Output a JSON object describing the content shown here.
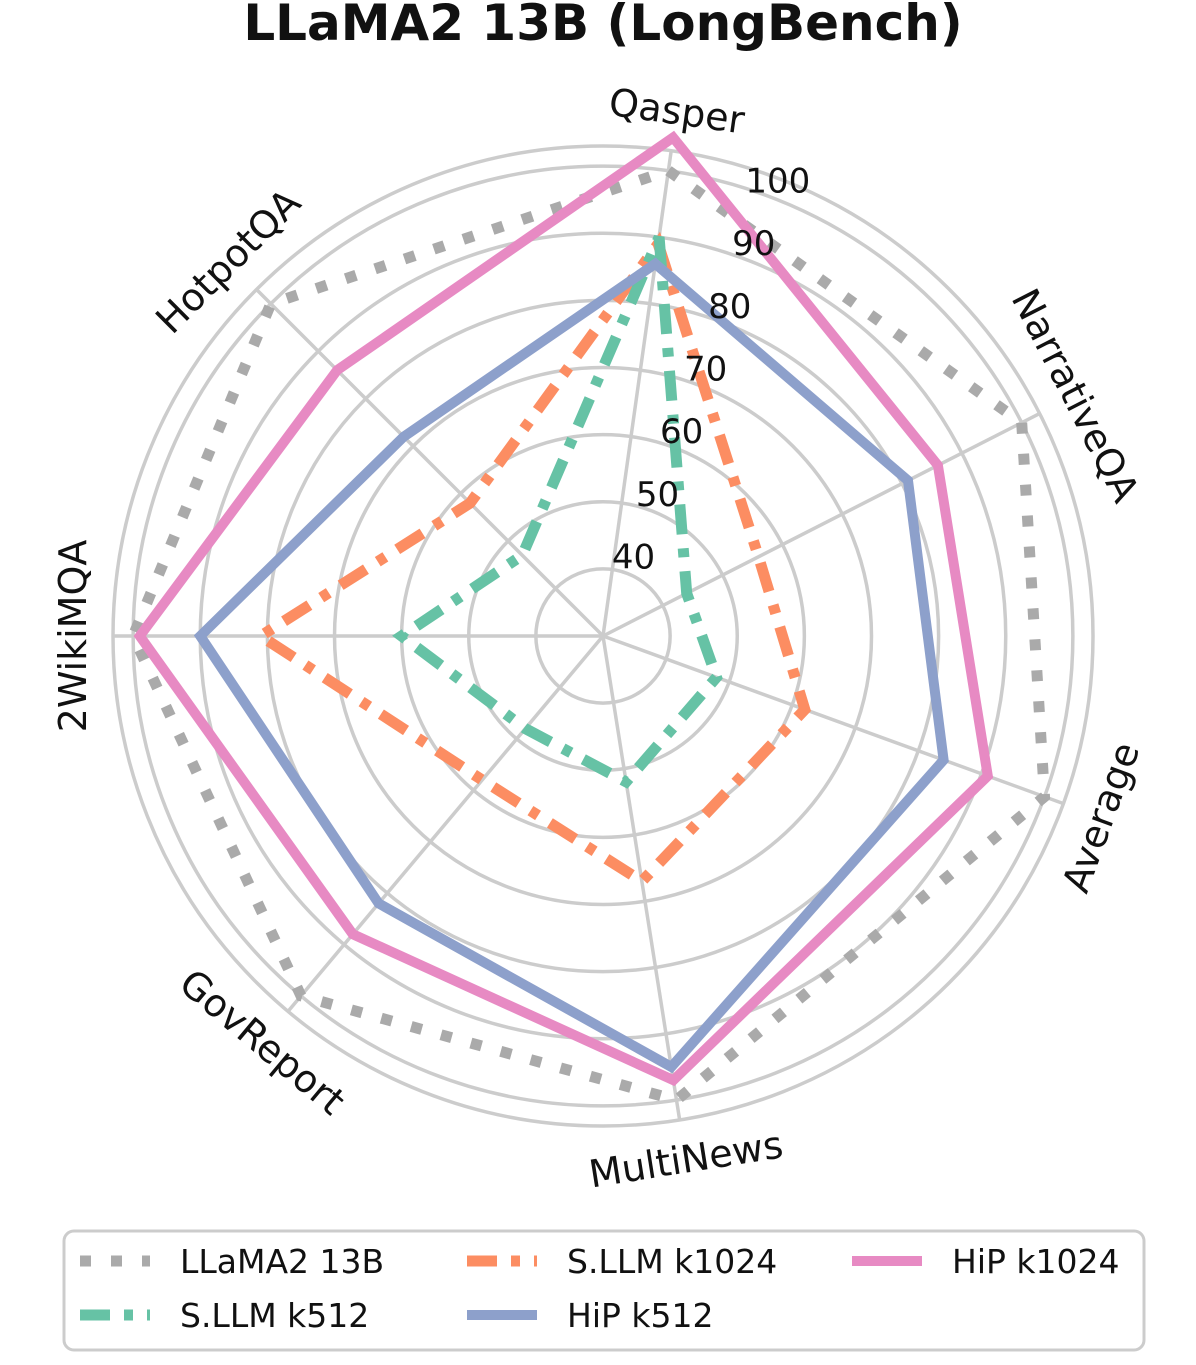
{
  "chart_data": {
    "type": "radar",
    "title": "LLaMA2 13B (LongBench)",
    "axes": [
      "Qasper",
      "NarrativeQA",
      "Average",
      "MultiNews",
      "GovReport",
      "2WikiMQA",
      "HotpotQA"
    ],
    "r_ticks": [
      40,
      50,
      60,
      70,
      80,
      90,
      100
    ],
    "r_range": [
      30,
      103
    ],
    "grid": true,
    "legend_position": "bottom",
    "series": [
      {
        "name": "LLaMA2 13B",
        "style": "dotted",
        "color": "#aaaaaa",
        "values": [
          100,
          100,
          100,
          100,
          100,
          100,
          100
        ]
      },
      {
        "name": "S.LLM k1024",
        "style": "dashdot",
        "color": "#fc8d62",
        "values": [
          89,
          56,
          62,
          67,
          58,
          81,
          58
        ]
      },
      {
        "name": "HiP k1024",
        "style": "solid",
        "color": "#e78ac3",
        "values": [
          105,
          86,
          91,
          97,
          88,
          99,
          86
        ]
      },
      {
        "name": "S.LLM k512",
        "style": "dashdot",
        "color": "#66c2a5",
        "values": [
          90,
          44,
          48,
          52,
          48,
          60,
          47
        ]
      },
      {
        "name": "HiP k512",
        "style": "solid",
        "color": "#8da0cb",
        "values": [
          86,
          81,
          84,
          95,
          82,
          90,
          72
        ]
      }
    ]
  }
}
